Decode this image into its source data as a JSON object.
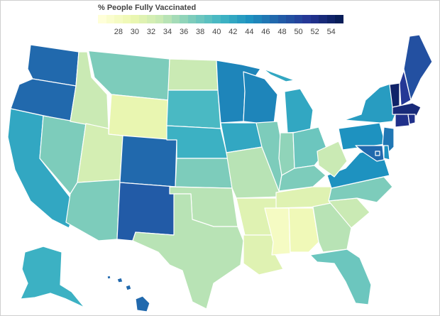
{
  "legend": {
    "title": "% People Fully Vaccinated",
    "ticks": [
      28,
      30,
      32,
      34,
      36,
      38,
      40,
      42,
      44,
      46,
      48,
      50,
      52,
      54
    ],
    "min": 26,
    "max": 55
  },
  "colors": {
    "ramp": [
      "#ffffd9",
      "#edf8b1",
      "#c7e9b4",
      "#7fcdbb",
      "#41b6c4",
      "#1d91c0",
      "#225ea8",
      "#253494",
      "#081d58"
    ]
  },
  "chart_data": {
    "type": "choropleth",
    "metric": "% People Fully Vaccinated",
    "range": [
      26,
      55
    ],
    "states": {
      "WA": 47,
      "OR": 47,
      "CA": 42,
      "NV": 37,
      "ID": 33,
      "MT": 37,
      "WY": 30,
      "UT": 32,
      "AZ": 37,
      "CO": 47,
      "NM": 48,
      "ND": 33,
      "SD": 40,
      "NE": 41,
      "KS": 37,
      "OK": 34,
      "TX": 34,
      "MN": 45,
      "IA": 42,
      "MO": 34,
      "AR": 31,
      "LA": 31,
      "WI": 45,
      "IL": 37,
      "MI": 42,
      "IN": 36,
      "OH": 38,
      "KY": 37,
      "TN": 31,
      "MS": 28,
      "AL": 29,
      "GA": 34,
      "FL": 38,
      "SC": 33,
      "NC": 37,
      "VA": 44,
      "WV": 33,
      "PA": 44,
      "NY": 43,
      "NJ": 46,
      "DE": 44,
      "MD": 47,
      "DC": 47,
      "VT": 54,
      "NH": 51,
      "ME": 49,
      "MA": 53,
      "CT": 52,
      "RI": 52,
      "AK": 41,
      "HI": 47
    }
  }
}
